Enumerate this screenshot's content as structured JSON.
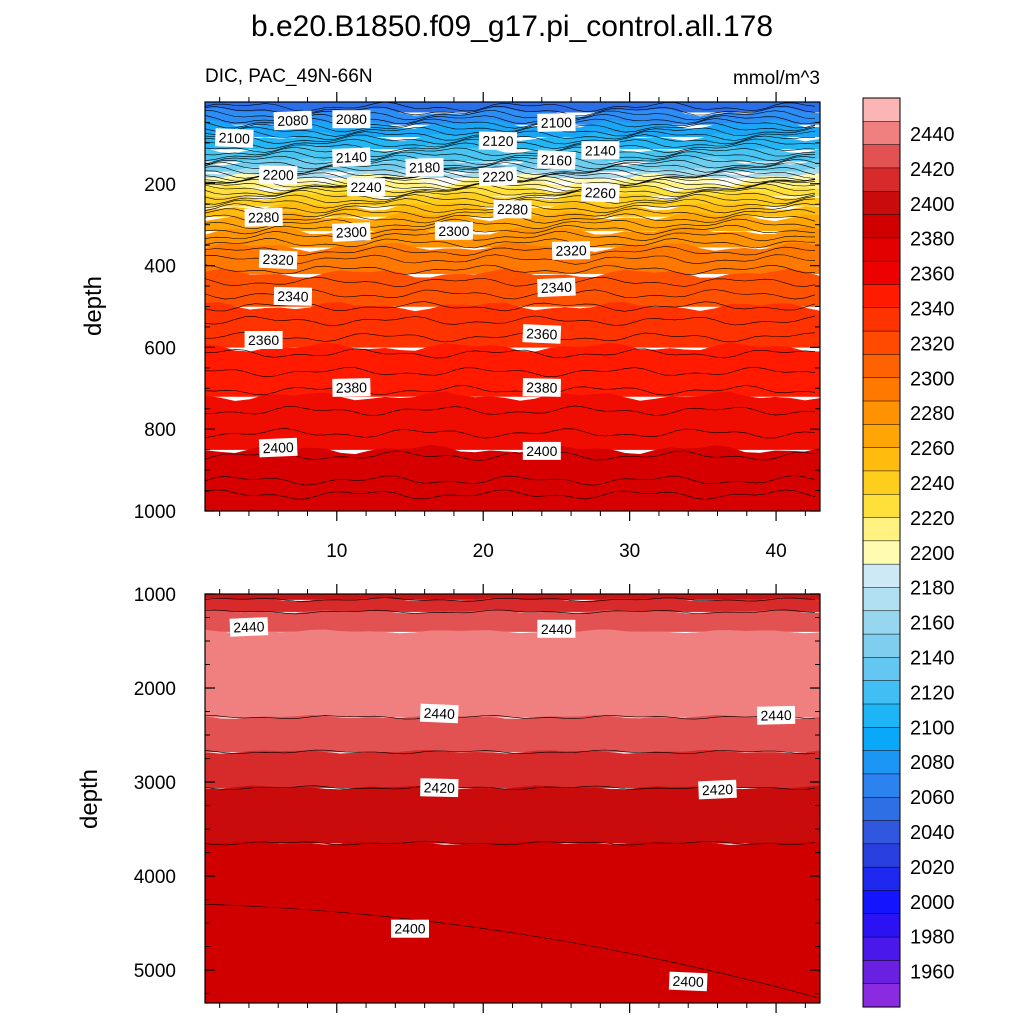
{
  "chart_data": {
    "type": "contour",
    "title": "b.e20.B1850.f09_g17.pi_control.all.178",
    "variable_label": "DIC, PAC_49N-66N",
    "units_label": "mmol/m^3",
    "x_ticks": [
      10,
      20,
      30,
      40
    ],
    "x_tick_labels": [
      "10",
      "20",
      "30",
      "40"
    ],
    "x_range": [
      1,
      43
    ],
    "panels": [
      {
        "name": "upper",
        "ylabel": "depth",
        "y_range": [
          0,
          1000
        ],
        "y_ticks": [
          200,
          400,
          600,
          800,
          1000
        ],
        "y_tick_labels": [
          "200",
          "400",
          "600",
          "800",
          "1000"
        ],
        "bands": [
          {
            "z0": 0,
            "z1": 25,
            "color": "#2a6ee8"
          },
          {
            "z0": 25,
            "z1": 55,
            "color": "#2c8df5"
          },
          {
            "z0": 55,
            "z1": 85,
            "color": "#1aa6f6"
          },
          {
            "z0": 85,
            "z1": 115,
            "color": "#23b5f4"
          },
          {
            "z0": 115,
            "z1": 145,
            "color": "#48c4f0"
          },
          {
            "z0": 145,
            "z1": 170,
            "color": "#6fcdee"
          },
          {
            "z0": 170,
            "z1": 185,
            "color": "#a5dcf0"
          },
          {
            "z0": 185,
            "z1": 195,
            "color": "#fffbb0"
          },
          {
            "z0": 195,
            "z1": 210,
            "color": "#fff281"
          },
          {
            "z0": 210,
            "z1": 230,
            "color": "#ffe03a"
          },
          {
            "z0": 230,
            "z1": 255,
            "color": "#ffce1c"
          },
          {
            "z0": 255,
            "z1": 280,
            "color": "#ffbb0e"
          },
          {
            "z0": 280,
            "z1": 315,
            "color": "#ffa505"
          },
          {
            "z0": 315,
            "z1": 355,
            "color": "#ff9200"
          },
          {
            "z0": 355,
            "z1": 420,
            "color": "#ff7800"
          },
          {
            "z0": 420,
            "z1": 500,
            "color": "#ff5200"
          },
          {
            "z0": 500,
            "z1": 600,
            "color": "#ff3300"
          },
          {
            "z0": 600,
            "z1": 720,
            "color": "#ff1a00"
          },
          {
            "z0": 720,
            "z1": 850,
            "color": "#ee0d00"
          },
          {
            "z0": 850,
            "z1": 1000,
            "color": "#d60000"
          }
        ],
        "contour_depths": [
          12,
          22,
          32,
          42,
          52,
          62,
          72,
          82,
          92,
          102,
          112,
          122,
          132,
          142,
          152,
          160,
          168,
          175,
          182,
          188,
          194,
          200,
          206,
          212,
          220,
          228,
          238,
          248,
          260,
          272,
          285,
          298,
          312,
          328,
          345,
          365,
          385,
          410,
          440,
          470,
          500,
          535,
          575,
          615,
          660,
          705,
          755,
          810,
          865,
          925,
          960
        ],
        "labels": [
          {
            "text": "2080",
            "x": 7,
            "z": 45
          },
          {
            "text": "2080",
            "x": 11,
            "z": 42
          },
          {
            "text": "2100",
            "x": 3,
            "z": 88
          },
          {
            "text": "2100",
            "x": 25,
            "z": 50
          },
          {
            "text": "2120",
            "x": 21,
            "z": 95
          },
          {
            "text": "2140",
            "x": 11,
            "z": 135
          },
          {
            "text": "2140",
            "x": 28,
            "z": 118
          },
          {
            "text": "2160",
            "x": 25,
            "z": 142
          },
          {
            "text": "2180",
            "x": 16,
            "z": 160
          },
          {
            "text": "2200",
            "x": 6,
            "z": 178
          },
          {
            "text": "2220",
            "x": 21,
            "z": 182
          },
          {
            "text": "2240",
            "x": 12,
            "z": 208
          },
          {
            "text": "2260",
            "x": 28,
            "z": 222
          },
          {
            "text": "2280",
            "x": 5,
            "z": 282
          },
          {
            "text": "2280",
            "x": 22,
            "z": 262
          },
          {
            "text": "2300",
            "x": 11,
            "z": 318
          },
          {
            "text": "2300",
            "x": 18,
            "z": 315
          },
          {
            "text": "2320",
            "x": 6,
            "z": 385
          },
          {
            "text": "2320",
            "x": 26,
            "z": 363
          },
          {
            "text": "2340",
            "x": 7,
            "z": 475
          },
          {
            "text": "2340",
            "x": 25,
            "z": 453
          },
          {
            "text": "2360",
            "x": 5,
            "z": 582
          },
          {
            "text": "2360",
            "x": 24,
            "z": 567
          },
          {
            "text": "2380",
            "x": 11,
            "z": 698
          },
          {
            "text": "2380",
            "x": 24,
            "z": 698
          },
          {
            "text": "2400",
            "x": 6,
            "z": 845
          },
          {
            "text": "2400",
            "x": 24,
            "z": 853
          }
        ]
      },
      {
        "name": "lower",
        "ylabel": "depth",
        "y_range": [
          1000,
          5350
        ],
        "y_ticks": [
          1000,
          2000,
          3000,
          4000,
          5000
        ],
        "y_tick_labels": [
          "1000",
          "2000",
          "3000",
          "4000",
          "5000"
        ],
        "bands": [
          {
            "z0": 1000,
            "z1": 1060,
            "color": "#c81414"
          },
          {
            "z0": 1060,
            "z1": 1190,
            "color": "#d82a2a"
          },
          {
            "z0": 1190,
            "z1": 1400,
            "color": "#e25252"
          },
          {
            "z0": 1400,
            "z1": 2310,
            "color": "#f08080"
          },
          {
            "z0": 2310,
            "z1": 2680,
            "color": "#e25252"
          },
          {
            "z0": 2680,
            "z1": 3060,
            "color": "#d72a2a"
          },
          {
            "z0": 3060,
            "z1": 3650,
            "color": "#c90b0b"
          },
          {
            "z0": 3650,
            "z1": 5350,
            "color": "#d00000"
          }
        ],
        "contour_depths": [
          1060,
          1190,
          2310,
          2680,
          3060,
          3650
        ],
        "sloped_contour": {
          "x_start": 1,
          "z_start": 4300,
          "x_end": 43,
          "z_end": 5300
        },
        "labels": [
          {
            "text": "2440",
            "x": 4,
            "z": 1350
          },
          {
            "text": "2440",
            "x": 25,
            "z": 1370
          },
          {
            "text": "2440",
            "x": 17,
            "z": 2270
          },
          {
            "text": "2440",
            "x": 40,
            "z": 2290
          },
          {
            "text": "2420",
            "x": 17,
            "z": 3060
          },
          {
            "text": "2420",
            "x": 36,
            "z": 3080
          },
          {
            "text": "2400",
            "x": 15,
            "z": 4560
          },
          {
            "text": "2400",
            "x": 34,
            "z": 5120
          }
        ]
      }
    ],
    "colorbar": {
      "tick_labels": [
        "2440",
        "2420",
        "2400",
        "2380",
        "2360",
        "2340",
        "2320",
        "2300",
        "2280",
        "2260",
        "2240",
        "2220",
        "2200",
        "2180",
        "2160",
        "2140",
        "2120",
        "2100",
        "2080",
        "2060",
        "2040",
        "2020",
        "2000",
        "1980",
        "1960"
      ],
      "colors": [
        "#fbb5b5",
        "#f08080",
        "#e25252",
        "#d72a2a",
        "#c90b0b",
        "#d00000",
        "#e20000",
        "#ef0000",
        "#ff1a00",
        "#ff3300",
        "#ff4a00",
        "#ff6200",
        "#ff7800",
        "#ff9200",
        "#ffa505",
        "#ffbb0e",
        "#ffce1c",
        "#ffe03a",
        "#fff281",
        "#fffbb0",
        "#cce9f5",
        "#b0e0f1",
        "#97d6ef",
        "#7fcef0",
        "#63c7f2",
        "#41bff5",
        "#1eb5f7",
        "#0aa8f8",
        "#1c96f5",
        "#2c83f0",
        "#2f6fe6",
        "#3157df",
        "#2a3fe0",
        "#1f28ee",
        "#1414ff",
        "#2a12f5",
        "#4a18ea",
        "#6a20e0",
        "#8a2be2"
      ]
    }
  }
}
